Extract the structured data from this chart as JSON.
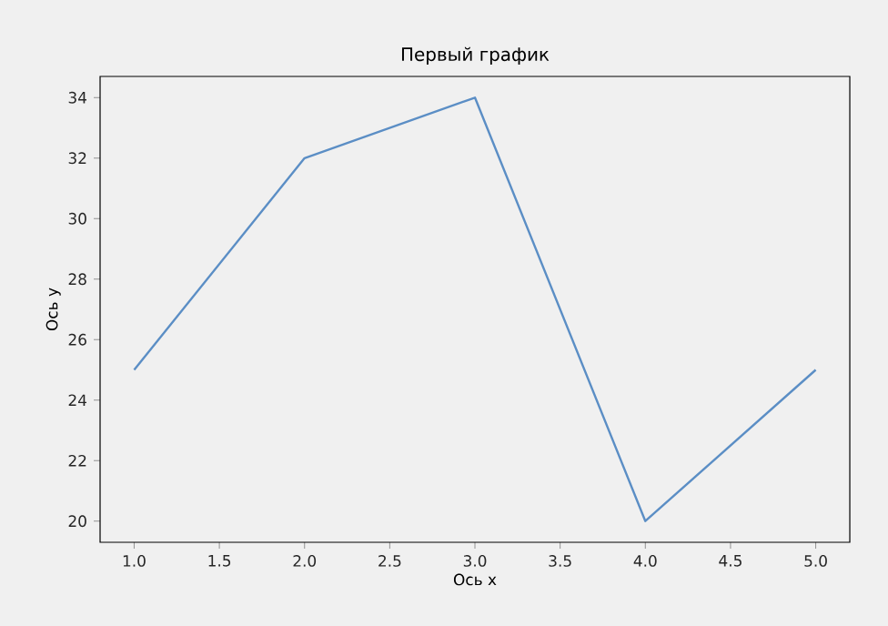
{
  "chart_data": {
    "type": "line",
    "title": "Первый график",
    "xlabel": "Ось x",
    "ylabel": "Ось y",
    "x": [
      1,
      2,
      3,
      4,
      5
    ],
    "values": [
      25,
      32,
      34,
      20,
      25
    ],
    "color": "#5b8ec5",
    "xlim": [
      0.8,
      5.2
    ],
    "ylim": [
      19.3,
      34.7
    ],
    "xticks": [
      {
        "value": 1,
        "label": "1.0"
      },
      {
        "value": 1.5,
        "label": "1.5"
      },
      {
        "value": 2,
        "label": "2.0"
      },
      {
        "value": 2.5,
        "label": "2.5"
      },
      {
        "value": 3,
        "label": "3.0"
      },
      {
        "value": 3.5,
        "label": "3.5"
      },
      {
        "value": 4,
        "label": "4.0"
      },
      {
        "value": 4.5,
        "label": "4.5"
      },
      {
        "value": 5,
        "label": "5.0"
      }
    ],
    "yticks": [
      20,
      22,
      24,
      26,
      28,
      30,
      32,
      34
    ]
  }
}
